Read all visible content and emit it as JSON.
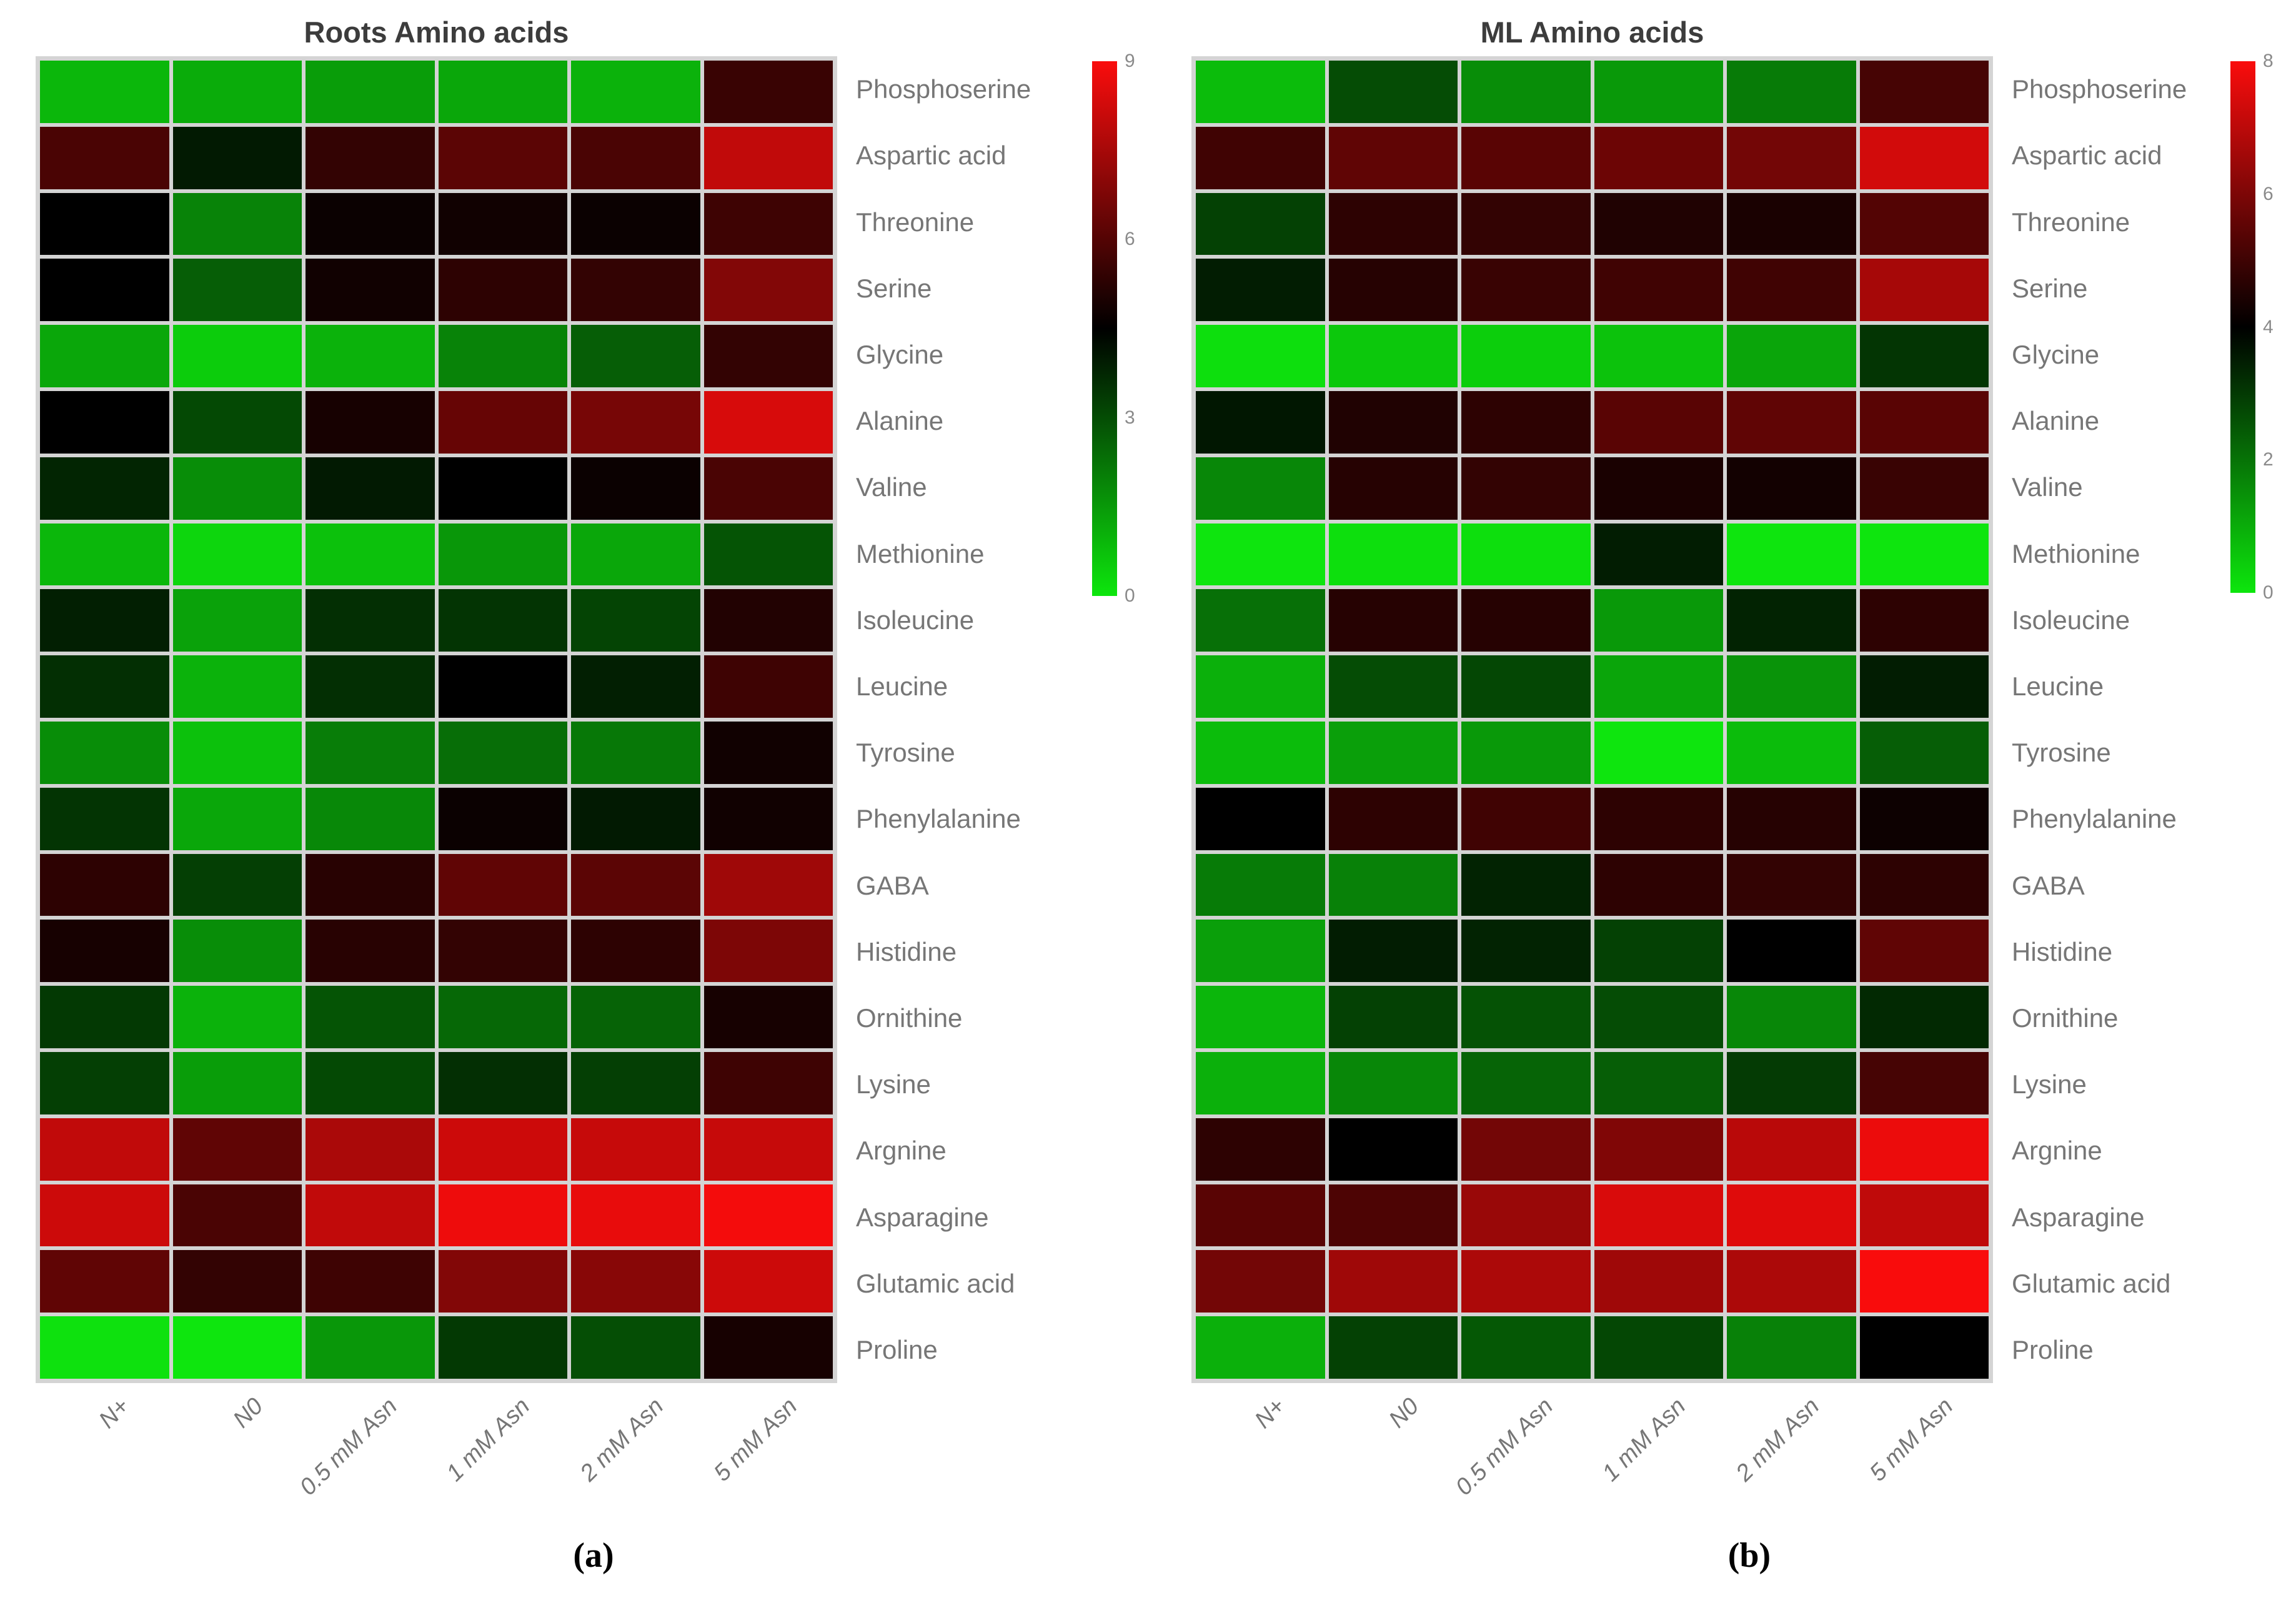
{
  "figure": {
    "background_color": "#ffffff",
    "grid_gap_color": "#d4d4d4",
    "title_color": "#3c3c3c",
    "label_color": "#767676",
    "tick_label_color": "#8a8a8a",
    "colormap": {
      "low_color": "#0de60d",
      "mid_color": "#000000",
      "high_color": "#fa0d0d",
      "description": "green-black-red diverging"
    }
  },
  "chart_data": [
    {
      "type": "heatmap",
      "panel": "a",
      "title": "Roots Amino acids",
      "caption": "(a)",
      "legend_position": "right-colorbar",
      "grid": "off",
      "colorbar": {
        "min": 0,
        "mid": 4.5,
        "max": 9,
        "ticks": [
          0,
          3,
          6,
          9
        ]
      },
      "x_categories": [
        "N+",
        "N0",
        "0.5 mM Asn",
        "1 mM Asn",
        "2 mM Asn",
        "5 mM Asn"
      ],
      "y_categories": [
        "Phosphoserine",
        "Aspartic acid",
        "Threonine",
        "Serine",
        "Glycine",
        "Alanine",
        "Valine",
        "Methionine",
        "Isoleucine",
        "Leucine",
        "Tyrosine",
        "Phenylalanine",
        "GABA",
        "Histidine",
        "Ornithine",
        "Lysine",
        "Argnine",
        "Asparagine",
        "Glutamic acid",
        "Proline"
      ],
      "values": [
        [
          1.0,
          1.2,
          1.5,
          1.3,
          1.1,
          5.5
        ],
        [
          5.8,
          4.0,
          5.4,
          6.1,
          5.8,
          7.9
        ],
        [
          4.5,
          2.0,
          4.7,
          4.8,
          4.7,
          5.6
        ],
        [
          4.5,
          2.7,
          4.8,
          5.3,
          5.4,
          6.8
        ],
        [
          1.3,
          0.6,
          1.1,
          2.0,
          2.7,
          5.4
        ],
        [
          4.5,
          3.1,
          4.9,
          6.3,
          6.6,
          8.3
        ],
        [
          3.8,
          1.8,
          4.0,
          4.5,
          4.7,
          5.8
        ],
        [
          1.0,
          0.4,
          0.8,
          1.6,
          1.3,
          2.9
        ],
        [
          3.9,
          1.4,
          3.6,
          3.5,
          3.2,
          5.1
        ],
        [
          3.6,
          1.1,
          3.6,
          4.5,
          3.9,
          5.6
        ],
        [
          1.8,
          0.8,
          2.1,
          2.4,
          2.2,
          4.8
        ],
        [
          3.5,
          1.3,
          1.9,
          4.7,
          4.0,
          4.8
        ],
        [
          5.3,
          3.3,
          5.2,
          6.2,
          6.1,
          7.3
        ],
        [
          4.9,
          1.8,
          5.2,
          5.4,
          5.3,
          6.7
        ],
        [
          3.4,
          1.1,
          2.9,
          2.5,
          2.6,
          4.9
        ],
        [
          3.3,
          1.5,
          3.1,
          3.6,
          3.3,
          5.6
        ],
        [
          7.9,
          6.2,
          7.5,
          8.1,
          8.0,
          8.0
        ],
        [
          8.1,
          5.8,
          7.9,
          8.7,
          8.6,
          8.8
        ],
        [
          6.2,
          5.4,
          5.6,
          6.8,
          6.9,
          8.1
        ],
        [
          0.2,
          0.1,
          1.6,
          3.4,
          3.0,
          4.9
        ]
      ]
    },
    {
      "type": "heatmap",
      "panel": "b",
      "title": "ML Amino acids",
      "caption": "(b)",
      "legend_position": "right-colorbar",
      "grid": "off",
      "colorbar": {
        "min": 0,
        "mid": 4,
        "max": 8,
        "ticks": [
          0,
          2,
          4,
          6,
          8
        ]
      },
      "x_categories": [
        "N+",
        "N0",
        "0.5 mM Asn",
        "1 mM Asn",
        "2 mM Asn",
        "5 mM Asn"
      ],
      "y_categories": [
        "Phosphoserine",
        "Aspartic acid",
        "Threonine",
        "Serine",
        "Glycine",
        "Alanine",
        "Valine",
        "Methionine",
        "Isoleucine",
        "Leucine",
        "Tyrosine",
        "Phenylalanine",
        "GABA",
        "Histidine",
        "Ornithine",
        "Lysine",
        "Argnine",
        "Asparagine",
        "Glutamic acid",
        "Proline"
      ],
      "values": [
        [
          0.8,
          2.7,
          1.6,
          1.4,
          1.9,
          5.1
        ],
        [
          5.0,
          5.5,
          5.4,
          5.7,
          5.8,
          7.3
        ],
        [
          2.9,
          4.7,
          4.8,
          4.5,
          4.4,
          5.3
        ],
        [
          3.5,
          4.6,
          4.9,
          5.0,
          5.0,
          6.6
        ],
        [
          0.2,
          0.6,
          0.5,
          0.7,
          1.2,
          3.1
        ],
        [
          3.6,
          4.5,
          4.7,
          5.4,
          5.5,
          5.4
        ],
        [
          1.7,
          4.6,
          4.8,
          4.4,
          4.3,
          4.9
        ],
        [
          0.1,
          0.2,
          0.2,
          3.5,
          0.1,
          0.1
        ],
        [
          2.1,
          4.6,
          4.6,
          1.4,
          3.4,
          4.7
        ],
        [
          1.0,
          2.7,
          2.8,
          1.2,
          1.5,
          3.5
        ],
        [
          0.8,
          1.3,
          1.4,
          0.1,
          0.8,
          2.4
        ],
        [
          4.0,
          4.7,
          5.0,
          4.7,
          4.6,
          4.2
        ],
        [
          1.9,
          1.8,
          3.4,
          4.7,
          4.8,
          4.7
        ],
        [
          1.3,
          3.5,
          3.4,
          2.9,
          4.0,
          5.5
        ],
        [
          0.9,
          2.9,
          2.6,
          2.7,
          1.7,
          3.3
        ],
        [
          1.0,
          1.7,
          2.3,
          2.4,
          3.0,
          5.1
        ],
        [
          4.7,
          4.0,
          5.8,
          6.0,
          6.9,
          7.7
        ],
        [
          5.4,
          5.2,
          6.4,
          7.4,
          7.5,
          7.0
        ],
        [
          5.8,
          6.5,
          6.7,
          6.5,
          6.7,
          7.9
        ],
        [
          1.0,
          2.9,
          2.5,
          2.8,
          1.8,
          4.0
        ]
      ]
    }
  ]
}
